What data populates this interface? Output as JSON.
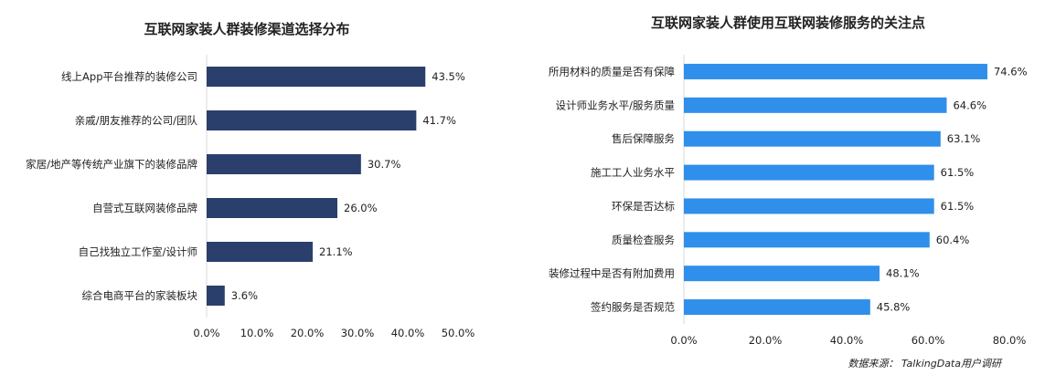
{
  "chart_data": [
    {
      "type": "bar",
      "orientation": "horizontal",
      "title": "互联网家装人群装修渠道选择分布",
      "categories": [
        "线上App平台推荐的装修公司",
        "亲戚/朋友推荐的公司/团队",
        "家居/地产等传统产业旗下的装修品牌",
        "自营式互联网装修品牌",
        "自己找独立工作室/设计师",
        "综合电商平台的家装板块"
      ],
      "values": [
        43.5,
        41.7,
        30.7,
        26.0,
        21.1,
        3.6
      ],
      "value_labels": [
        "43.5%",
        "41.7%",
        "30.7%",
        "26.0%",
        "21.1%",
        "3.6%"
      ],
      "xlim": [
        0,
        50
      ],
      "ticks": [
        0,
        10,
        20,
        30,
        40,
        50
      ],
      "tick_labels": [
        "0.0%",
        "10.0%",
        "20.0%",
        "30.0%",
        "40.0%",
        "50.0%"
      ],
      "grid": false,
      "color": "#2b3f6c"
    },
    {
      "type": "bar",
      "orientation": "horizontal",
      "title": "互联网家装人群使用互联网装修服务的关注点",
      "categories": [
        "所用材料的质量是否有保障",
        "设计师业务水平/服务质量",
        "售后保障服务",
        "施工工人业务水平",
        "环保是否达标",
        "质量检查服务",
        "装修过程中是否有附加费用",
        "签约服务是否规范"
      ],
      "values": [
        74.6,
        64.6,
        63.1,
        61.5,
        61.5,
        60.4,
        48.1,
        45.8
      ],
      "value_labels": [
        "74.6%",
        "64.6%",
        "63.1%",
        "61.5%",
        "61.5%",
        "60.4%",
        "48.1%",
        "45.8%"
      ],
      "xlim": [
        0,
        80
      ],
      "ticks": [
        0,
        20,
        40,
        60,
        80
      ],
      "tick_labels": [
        "0.0%",
        "20.0%",
        "40.0%",
        "60.0%",
        "80.0%"
      ],
      "grid": false,
      "color": "#2f8fea"
    }
  ],
  "source": "数据来源： TalkingData用户调研"
}
